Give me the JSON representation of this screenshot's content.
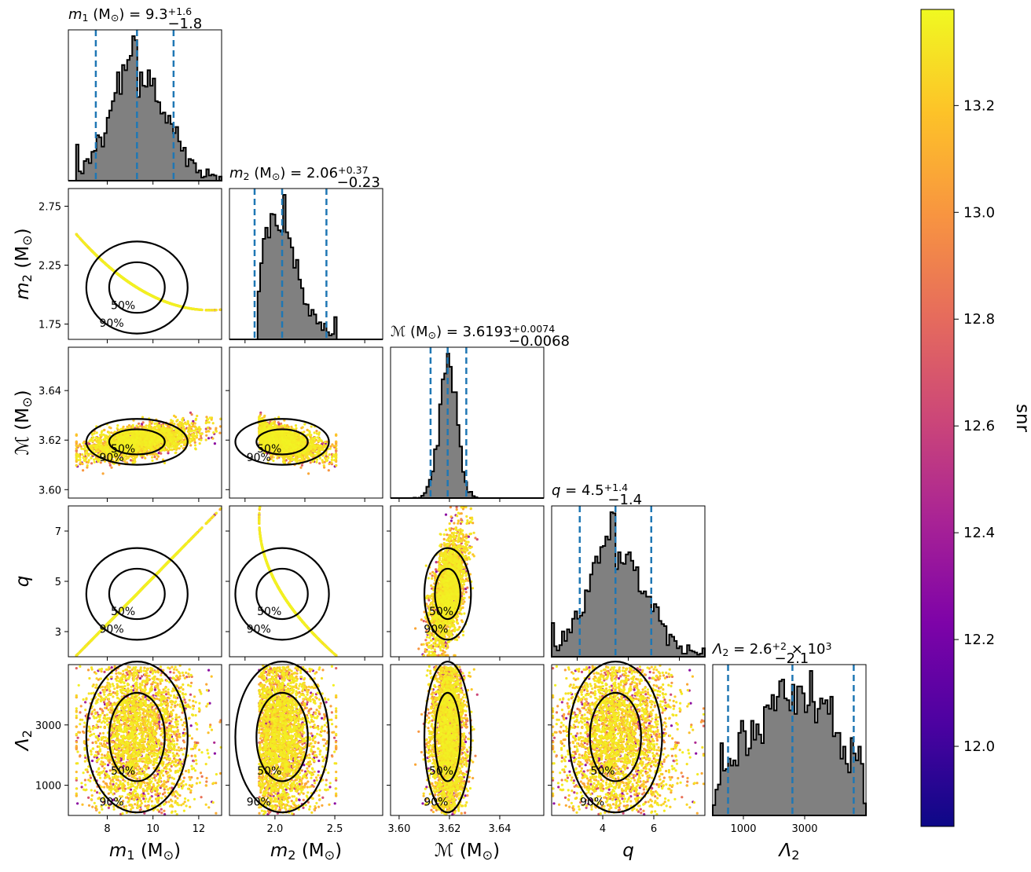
{
  "chart_data": {
    "type": "scatter",
    "parameters": [
      {
        "key": "m1",
        "axis_label_main": "m",
        "axis_label_sub": "1",
        "axis_label_unit": " (M",
        "axis_label_unit_sub": "⊙",
        "axis_label_close": ")",
        "title_prefix": "m",
        "title_sub": "1",
        "title_mid": " (M",
        "title_unit_sub": "⊙",
        "title_eq": ") = 9.3",
        "title_sup": "+1.6",
        "title_low": "−1.8",
        "range": [
          6.3,
          13.0
        ],
        "ticks": [
          8,
          10,
          12
        ],
        "tick_labels": [
          "8",
          "10",
          "12"
        ],
        "median": 9.3,
        "lower": 7.5,
        "upper": 10.9
      },
      {
        "key": "m2",
        "axis_label_main": "m",
        "axis_label_sub": "2",
        "axis_label_unit": " (M",
        "axis_label_unit_sub": "⊙",
        "axis_label_close": ")",
        "title_prefix": "m",
        "title_sub": "2",
        "title_mid": " (M",
        "title_unit_sub": "⊙",
        "title_eq": ") = 2.06",
        "title_sup": "+0.37",
        "title_low": "−0.23",
        "range": [
          1.62,
          2.9
        ],
        "ticks": [
          1.75,
          2.25,
          2.75
        ],
        "tick_labels": [
          "1.75",
          "2.25",
          "2.75"
        ],
        "ticks_bottom": [
          2.0,
          2.5
        ],
        "tick_labels_bottom": [
          "2.0",
          "2.5"
        ],
        "median": 2.06,
        "lower": 1.83,
        "upper": 2.43
      },
      {
        "key": "mc",
        "axis_label_main": "ℳ",
        "axis_label_sub": "",
        "axis_label_unit": " (M",
        "axis_label_unit_sub": "⊙",
        "axis_label_close": ")",
        "title_prefix": "ℳ",
        "title_sub": "",
        "title_mid": " (M",
        "title_unit_sub": "⊙",
        "title_eq": ") = 3.6193",
        "title_sup": "+0.0074",
        "title_low": "−0.0068",
        "range": [
          3.5966,
          3.6575
        ],
        "ticks": [
          3.6,
          3.62,
          3.64
        ],
        "tick_labels": [
          "3.60",
          "3.62",
          "3.64"
        ],
        "median": 3.6193,
        "lower": 3.6125,
        "upper": 3.6267
      },
      {
        "key": "q",
        "axis_label_main": "q",
        "axis_label_sub": "",
        "axis_label_unit": "",
        "axis_label_unit_sub": "",
        "axis_label_close": "",
        "title_prefix": "q",
        "title_sub": "",
        "title_mid": "",
        "title_unit_sub": "",
        "title_eq": " = 4.5",
        "title_sup": "+1.4",
        "title_low": "−1.4",
        "range": [
          2.0,
          8.0
        ],
        "ticks": [
          3,
          5,
          7
        ],
        "tick_labels": [
          "3",
          "5",
          "7"
        ],
        "ticks_bottom": [
          4,
          6
        ],
        "tick_labels_bottom": [
          "4",
          "6"
        ],
        "median": 4.5,
        "lower": 3.1,
        "upper": 5.9
      },
      {
        "key": "lambda2",
        "axis_label_main": "Λ",
        "axis_label_sub": "2",
        "axis_label_unit": "",
        "axis_label_unit_sub": "",
        "axis_label_close": "",
        "title_prefix": "Λ",
        "title_sub": "2",
        "title_mid": "",
        "title_unit_sub": "",
        "title_eq": " = 2.6",
        "title_sup": "+2",
        "title_low": "−2.1",
        "title_tail": " × 10",
        "title_tail_sup": "3",
        "range": [
          0,
          5000
        ],
        "ticks": [
          1000,
          3000
        ],
        "tick_labels": [
          "1000",
          "3000"
        ],
        "median": 2600,
        "lower": 500,
        "upper": 4600
      }
    ],
    "contour_levels": [
      "50%",
      "90%"
    ],
    "colorbar": {
      "label": "snr",
      "min": 11.85,
      "max": 13.38,
      "ticks": [
        12.0,
        12.2,
        12.4,
        12.6,
        12.8,
        13.0,
        13.2
      ],
      "tick_labels": [
        "12.0",
        "12.2",
        "12.4",
        "12.6",
        "12.8",
        "13.0",
        "13.2"
      ],
      "colormap": "plasma"
    },
    "colors": {
      "histogram_fill": "#808080",
      "histogram_edge": "#000000",
      "quantile_lines": "#1f77b4",
      "contours": "#000000"
    }
  }
}
